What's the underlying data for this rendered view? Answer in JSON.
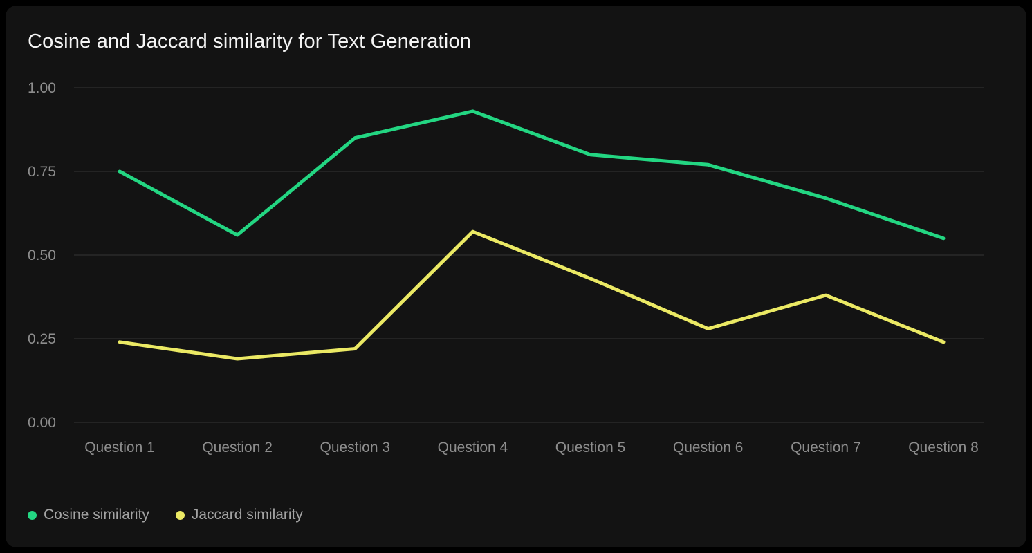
{
  "card": {
    "title": "Cosine and Jaccard similarity for Text Generation"
  },
  "chart_data": {
    "type": "line",
    "title": "Cosine and Jaccard similarity for Text Generation",
    "categories": [
      "Question 1",
      "Question 2",
      "Question 3",
      "Question 4",
      "Question 5",
      "Question 6",
      "Question 7",
      "Question 8"
    ],
    "series": [
      {
        "name": "Cosine similarity",
        "color": "#23d682",
        "values": [
          0.75,
          0.56,
          0.85,
          0.93,
          0.8,
          0.77,
          0.67,
          0.55
        ]
      },
      {
        "name": "Jaccard similarity",
        "color": "#ebe964",
        "values": [
          0.24,
          0.19,
          0.22,
          0.57,
          0.43,
          0.28,
          0.38,
          0.24
        ]
      }
    ],
    "y_axis": {
      "min": 0,
      "max": 1,
      "tick_step": 0.25,
      "tick_labels": [
        "0.00",
        "0.25",
        "0.50",
        "0.75",
        "1.00"
      ]
    },
    "xlabel": "",
    "ylabel": "",
    "grid": "horizontal",
    "legend_position": "bottom-left",
    "background": "#131313",
    "page_background": "#000000",
    "grid_color": "#2b2b2b",
    "tick_color": "#8d8d8d",
    "title_color": "#f4f4f4",
    "legend_text_color": "#a4a4a4"
  }
}
